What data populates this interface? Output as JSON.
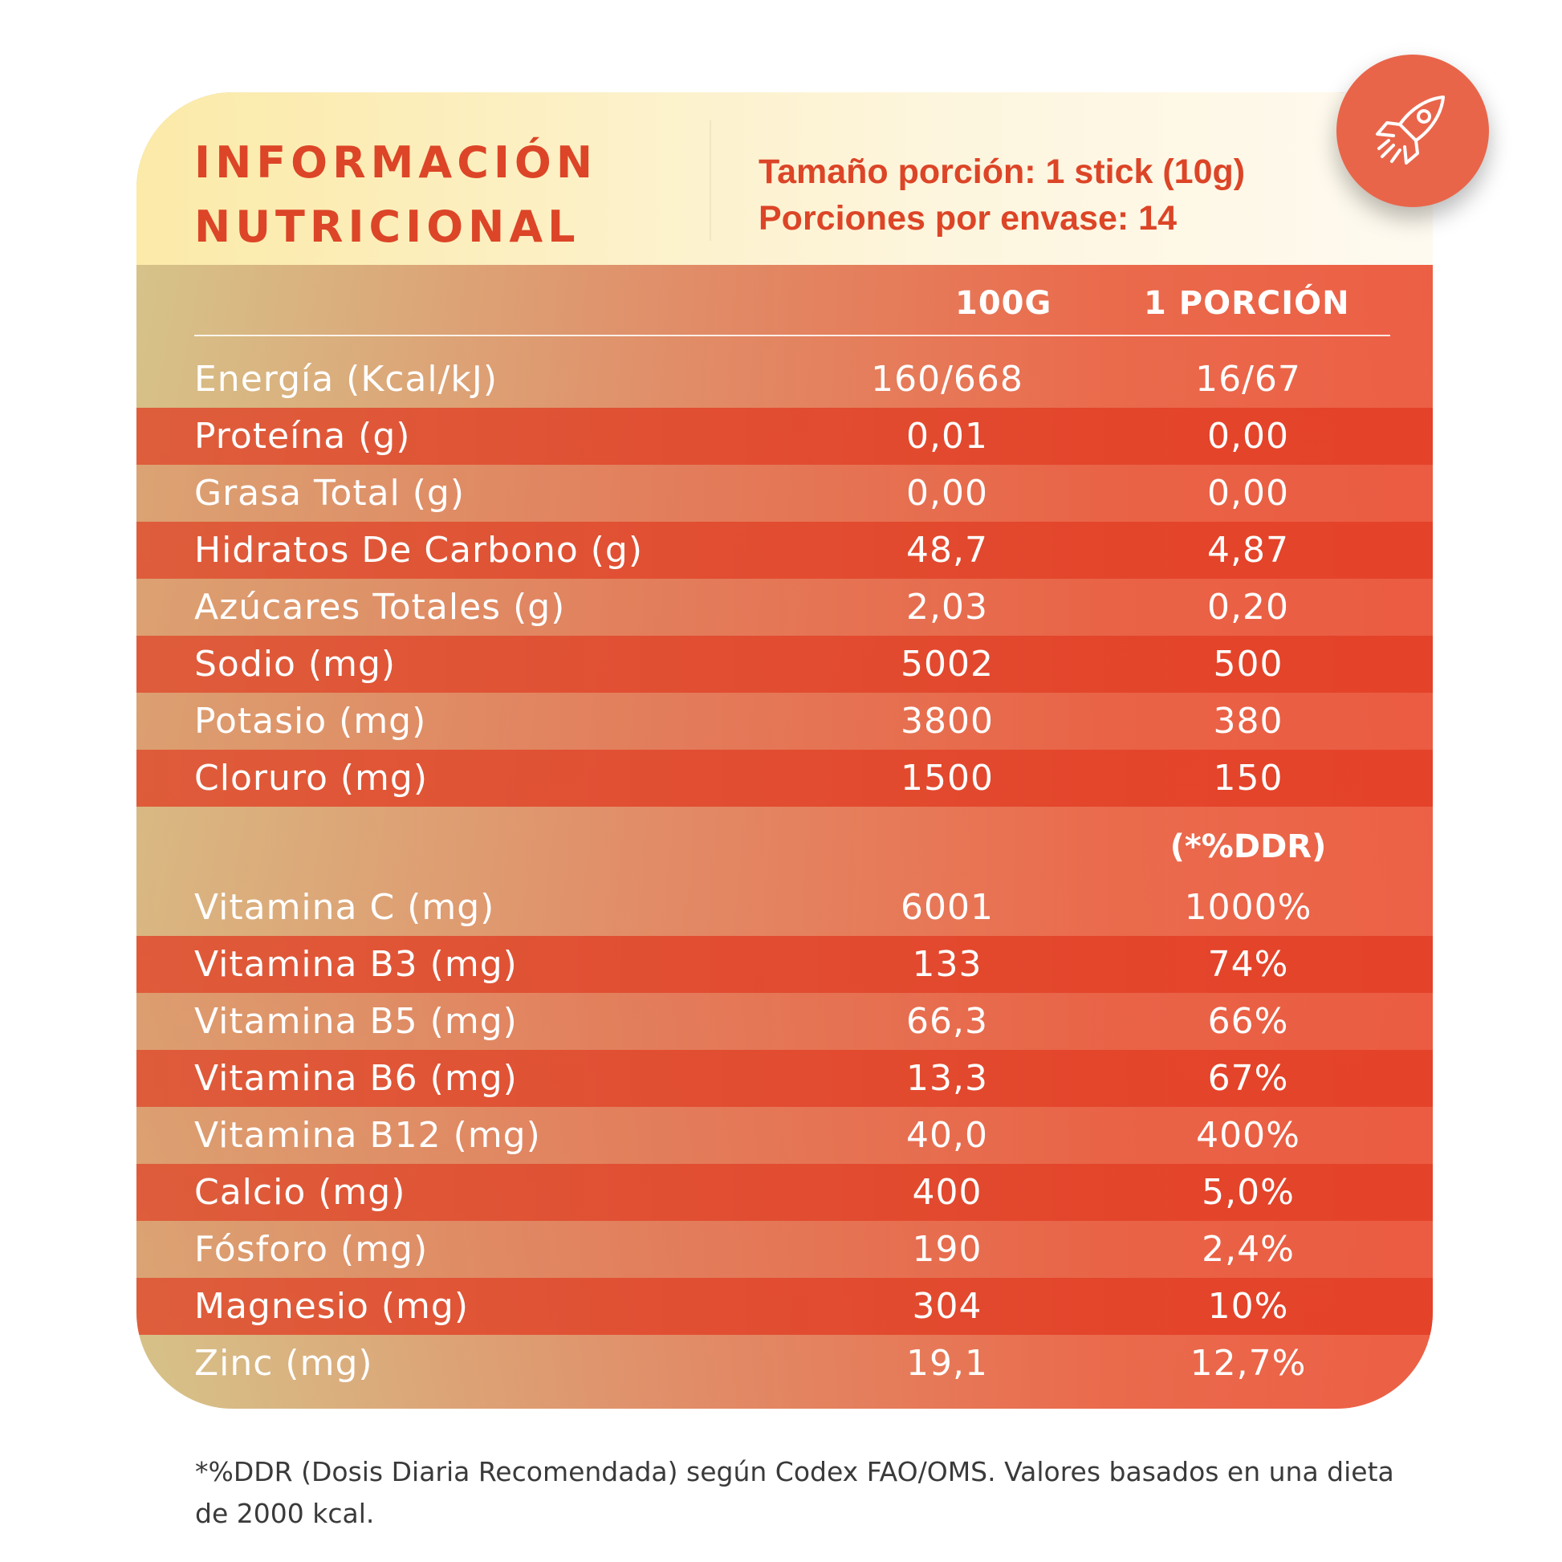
{
  "header": {
    "title_line1": "INFORMACIÓN",
    "title_line2": "NUTRICIONAL",
    "serving_size": "Tamaño porción: 1 stick (10g)",
    "servings_per_container": "Porciones por envase: 14"
  },
  "columns": {
    "per_100g": "100G",
    "per_serving": "1 PORCIÓN",
    "ddr": "(*%DDR)"
  },
  "nutrients": [
    {
      "label": "Energía (Kcal/kJ)",
      "v100": "160/668",
      "vserv": "16/67"
    },
    {
      "label": "Proteína (g)",
      "v100": "0,01",
      "vserv": "0,00"
    },
    {
      "label": "Grasa Total (g)",
      "v100": "0,00",
      "vserv": "0,00"
    },
    {
      "label": "Hidratos De Carbono (g)",
      "v100": "48,7",
      "vserv": "4,87"
    },
    {
      "label": "Azúcares Totales (g)",
      "v100": "2,03",
      "vserv": "0,20"
    },
    {
      "label": "Sodio (mg)",
      "v100": "5002",
      "vserv": "500"
    },
    {
      "label": "Potasio (mg)",
      "v100": "3800",
      "vserv": "380"
    },
    {
      "label": "Cloruro (mg)",
      "v100": "1500",
      "vserv": "150"
    }
  ],
  "vitamins": [
    {
      "label": "Vitamina C (mg)",
      "v100": "6001",
      "vserv": "1000%"
    },
    {
      "label": "Vitamina B3 (mg)",
      "v100": "133",
      "vserv": "74%"
    },
    {
      "label": "Vitamina B5 (mg)",
      "v100": "66,3",
      "vserv": "66%"
    },
    {
      "label": "Vitamina B6 (mg)",
      "v100": "13,3",
      "vserv": "67%"
    },
    {
      "label": "Vitamina B12 (mg)",
      "v100": "40,0",
      "vserv": "400%"
    },
    {
      "label": "Calcio (mg)",
      "v100": "400",
      "vserv": "5,0%"
    },
    {
      "label": "Fósforo (mg)",
      "v100": "190",
      "vserv": "2,4%"
    },
    {
      "label": "Magnesio (mg)",
      "v100": "304",
      "vserv": "10%"
    },
    {
      "label": "Zinc (mg)",
      "v100": "19,1",
      "vserv": "12,7%"
    }
  ],
  "footnote": "*%DDR (Dosis Diaria Recomendada) según Codex FAO/OMS. Valores basados en una dieta de 2000 kcal.",
  "badge_icon": "rocket-icon",
  "colors": {
    "accent_red": "#dc4527",
    "badge": "#e9654a"
  }
}
